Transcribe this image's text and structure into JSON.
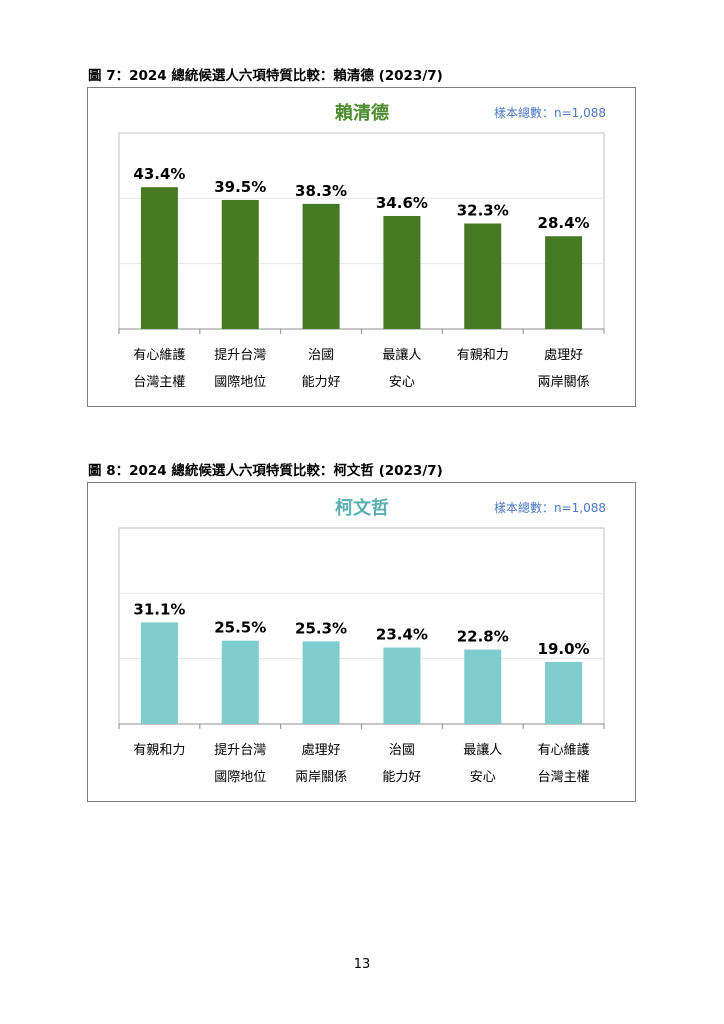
{
  "figures": [
    {
      "caption": {
        "label": "圖 7：2024",
        "text": " 總統候選人六項特質比較：賴清德 ",
        "date": "(2023/7)"
      },
      "sample": "樣本總數：n=1,088",
      "colors": {
        "title": "#4b8a2e",
        "bar": "#467a22",
        "sample": "#4a78c8"
      },
      "chart_data": {
        "type": "bar",
        "title": "賴清德",
        "categories": [
          [
            "有心維護",
            "台灣主權"
          ],
          [
            "提升台灣",
            "國際地位"
          ],
          [
            "治國",
            "能力好"
          ],
          [
            "最讓人",
            "安心"
          ],
          [
            "有親和力"
          ],
          [
            "處理好",
            "兩岸關係"
          ]
        ],
        "values": [
          43.4,
          39.5,
          38.3,
          34.6,
          32.3,
          28.4
        ],
        "value_labels": [
          "43.4%",
          "39.5%",
          "38.3%",
          "34.6%",
          "32.3%",
          "28.4%"
        ],
        "ylim": [
          0,
          60
        ],
        "grid": true,
        "legend": "none"
      }
    },
    {
      "caption": {
        "label": "圖 8：2024",
        "text": " 總統候選人六項特質比較：柯文哲 ",
        "date": "(2023/7)"
      },
      "sample": "樣本總數：n=1,088",
      "colors": {
        "title": "#59b0b0",
        "bar": "#7ecccc",
        "sample": "#4a78c8"
      },
      "chart_data": {
        "type": "bar",
        "title": "柯文哲",
        "categories": [
          [
            "有親和力"
          ],
          [
            "提升台灣",
            "國際地位"
          ],
          [
            "處理好",
            "兩岸關係"
          ],
          [
            "治國",
            "能力好"
          ],
          [
            "最讓人",
            "安心"
          ],
          [
            "有心維護",
            "台灣主權"
          ]
        ],
        "values": [
          31.1,
          25.5,
          25.3,
          23.4,
          22.8,
          19.0
        ],
        "value_labels": [
          "31.1%",
          "25.5%",
          "25.3%",
          "23.4%",
          "22.8%",
          "19.0%"
        ],
        "ylim": [
          0,
          60
        ],
        "grid": true,
        "legend": "none"
      }
    }
  ],
  "page_number": "13"
}
